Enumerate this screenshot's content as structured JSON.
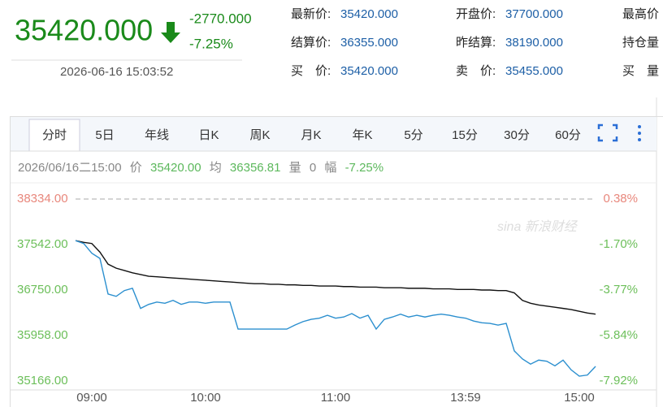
{
  "header": {
    "price": "35420.000",
    "change": "-2770.000",
    "change_pct": "-7.25%",
    "datetime": "2026-06-16 15:03:52"
  },
  "quote": {
    "rows": [
      [
        {
          "label": "最新价:",
          "value": "35420.000"
        },
        {
          "label": "开盘价:",
          "value": "37700.000"
        },
        {
          "label": "最高价"
        }
      ],
      [
        {
          "label": "结算价:",
          "value": "36355.000"
        },
        {
          "label": "昨结算:",
          "value": "38190.000"
        },
        {
          "label": "持仓量"
        }
      ],
      [
        {
          "label": "买　价:",
          "value": "35420.000"
        },
        {
          "label": "卖　价:",
          "value": "35455.000"
        },
        {
          "label": "买　量"
        }
      ]
    ]
  },
  "tabs": [
    "分时",
    "5日",
    "年线",
    "日K",
    "周K",
    "月K",
    "年K",
    "5分",
    "15分",
    "30分",
    "60分"
  ],
  "info_bar": {
    "time": "2026/06/16二15:00",
    "price": "35420.00",
    "avg": "36356.81",
    "vol_label": "量",
    "vol": "0",
    "amp_label": "幅",
    "amp": "-7.25%"
  },
  "watermark": "sina 新浪财经",
  "chart_data": {
    "type": "line",
    "categories": [
      null,
      null,
      "09:00",
      null,
      null,
      null,
      null,
      null,
      null,
      null,
      null,
      null,
      null,
      null,
      null,
      null,
      "10:00",
      null,
      null,
      null,
      null,
      null,
      null,
      null,
      null,
      null,
      null,
      null,
      null,
      null,
      null,
      null,
      "11:00",
      null,
      null,
      null,
      null,
      null,
      null,
      null,
      null,
      null,
      null,
      null,
      null,
      null,
      null,
      null,
      "13:59",
      null,
      null,
      null,
      null,
      null,
      null,
      null,
      null,
      null,
      null,
      null,
      null,
      null,
      "15:00",
      null,
      null
    ],
    "series": [
      {
        "name": "价",
        "color": "#2b8fcf",
        "values": [
          37610,
          37560,
          37390,
          37300,
          36680,
          36640,
          36740,
          36780,
          36430,
          36500,
          36540,
          36520,
          36570,
          36500,
          36540,
          36540,
          36520,
          36540,
          36540,
          36540,
          36070,
          36070,
          36070,
          36070,
          36070,
          36070,
          36070,
          36140,
          36200,
          36240,
          36260,
          36310,
          36260,
          36280,
          36340,
          36260,
          36310,
          36070,
          36240,
          36280,
          36330,
          36280,
          36310,
          36280,
          36310,
          36330,
          36310,
          36280,
          36260,
          36210,
          36180,
          36170,
          36140,
          36170,
          35690,
          35550,
          35460,
          35530,
          35510,
          35430,
          35530,
          35360,
          35250,
          35270,
          35420
        ]
      },
      {
        "name": "均",
        "color": "#111111",
        "values": [
          37610,
          37580,
          37560,
          37410,
          37200,
          37130,
          37090,
          37050,
          37020,
          36990,
          36980,
          36970,
          36960,
          36950,
          36940,
          36930,
          36920,
          36910,
          36900,
          36890,
          36880,
          36870,
          36860,
          36860,
          36850,
          36850,
          36840,
          36840,
          36830,
          36830,
          36820,
          36820,
          36820,
          36810,
          36810,
          36800,
          36800,
          36800,
          36790,
          36790,
          36790,
          36780,
          36780,
          36780,
          36770,
          36770,
          36770,
          36760,
          36760,
          36760,
          36750,
          36750,
          36740,
          36740,
          36700,
          36570,
          36520,
          36490,
          36470,
          36450,
          36430,
          36410,
          36380,
          36350,
          36330
        ]
      }
    ],
    "ylim": [
      35166,
      38334
    ],
    "yticks": [
      {
        "value": 38334,
        "label": "38334.00"
      },
      {
        "value": 37542,
        "label": "37542.00"
      },
      {
        "value": 36750,
        "label": "36750.00"
      },
      {
        "value": 35958,
        "label": "35958.00"
      },
      {
        "value": 35166,
        "label": "35166.00"
      }
    ],
    "y2lim": [
      -7.92,
      0.38
    ],
    "y2ticks": [
      {
        "value": 0.38,
        "label": "0.38%"
      },
      {
        "value": -1.7,
        "label": "-1.70%"
      },
      {
        "value": -3.77,
        "label": "-3.77%"
      },
      {
        "value": -5.84,
        "label": "-5.84%"
      },
      {
        "value": -7.92,
        "label": "-7.92%"
      }
    ],
    "up_color": "#e8877c",
    "down_color": "#6cbf5a"
  }
}
